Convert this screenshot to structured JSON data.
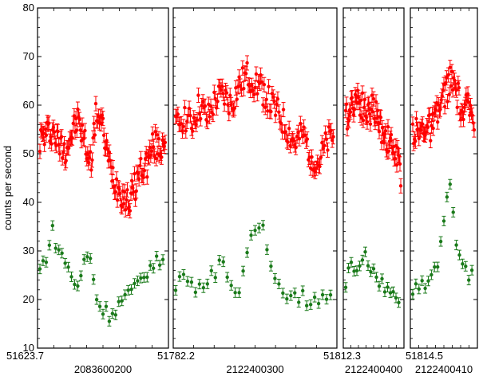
{
  "chart_data": {
    "type": "scatter",
    "title": "",
    "ylabel": "counts per second",
    "ylim": [
      10,
      80
    ],
    "yticks": [
      10,
      20,
      30,
      40,
      50,
      60,
      70,
      80
    ],
    "colors": {
      "red": "#ff0000",
      "green": "#1a7a1a"
    },
    "panels": [
      {
        "label": "2083600200",
        "tick_left": "51623.7",
        "tick_right": "",
        "x": [
          0.0,
          0.05,
          0.1,
          0.15,
          0.2,
          0.25,
          0.3,
          0.35,
          0.4,
          0.45,
          0.5,
          0.55,
          0.6,
          0.65,
          0.7,
          0.75,
          0.8,
          0.85,
          0.9,
          0.95,
          1.0
        ],
        "series": [
          {
            "color": "red",
            "values": [
              53,
              54,
              55,
              52,
              51,
              54,
              57,
              53,
              48,
              59,
              55,
              48,
              44,
              42,
              40,
              43,
              47,
              48,
              52,
              51,
              54
            ]
          },
          {
            "color": "green",
            "values": [
              26,
              29,
              34,
              30,
              28,
              25,
              22,
              28,
              29,
              20,
              18,
              17,
              18,
              20,
              21,
              22,
              24,
              26,
              27,
              28,
              30
            ]
          }
        ]
      },
      {
        "label": "2122400300",
        "tick_left": "51782.2",
        "tick_right": "",
        "x": [
          0.0,
          0.05,
          0.1,
          0.15,
          0.2,
          0.25,
          0.3,
          0.35,
          0.4,
          0.45,
          0.5,
          0.55,
          0.6,
          0.65,
          0.7,
          0.75,
          0.8,
          0.85,
          0.9,
          0.95,
          1.0
        ],
        "series": [
          {
            "color": "red",
            "values": [
              55,
              58,
              56,
              60,
              57,
              61,
              62,
              60,
              64,
              66,
              65,
              63,
              60,
              58,
              55,
              52,
              54,
              50,
              48,
              52,
              54
            ]
          },
          {
            "color": "green",
            "values": [
              22,
              26,
              23,
              22,
              24,
              26,
              28,
              23,
              22,
              30,
              35,
              34,
              28,
              22,
              21,
              20,
              21,
              19,
              20,
              21,
              19
            ]
          }
        ]
      },
      {
        "label": "2122400400",
        "tick_left": "51812.3",
        "tick_right": "",
        "x": [
          0.0,
          0.1,
          0.2,
          0.3,
          0.4,
          0.5,
          0.6,
          0.7,
          0.8,
          0.9,
          1.0
        ],
        "series": [
          {
            "color": "red",
            "values": [
              57,
              60,
              62,
              60,
              58,
              60,
              56,
              54,
              52,
              50,
              45
            ]
          },
          {
            "color": "green",
            "values": [
              23,
              28,
              26,
              29,
              28,
              26,
              24,
              22,
              22,
              21,
              20
            ]
          }
        ]
      },
      {
        "label": "2122400410",
        "tick_left": "51814.5",
        "tick_right": "",
        "x": [
          0.0,
          0.1,
          0.2,
          0.3,
          0.4,
          0.5,
          0.6,
          0.7,
          0.8,
          0.9,
          1.0
        ],
        "series": [
          {
            "color": "red",
            "values": [
              55,
              54,
              56,
              55,
              58,
              62,
              65,
              63,
              58,
              60,
              56
            ]
          },
          {
            "color": "green",
            "values": [
              22,
              22,
              23,
              25,
              28,
              37,
              43,
              32,
              28,
              25,
              27
            ]
          }
        ]
      }
    ],
    "x_edge_labels": [
      "51623.7",
      "51782.2",
      "51812.3",
      "51814.5"
    ]
  }
}
